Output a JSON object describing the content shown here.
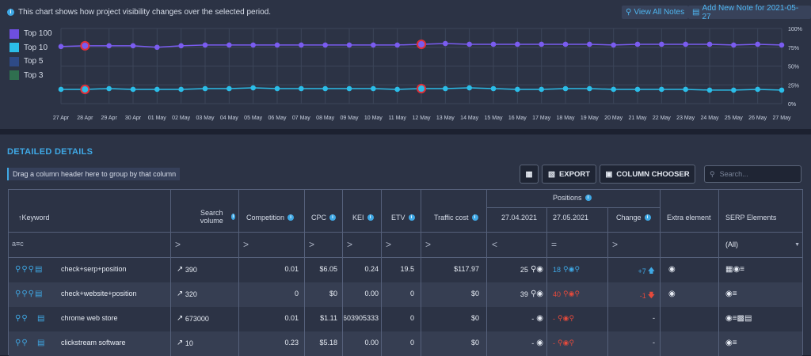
{
  "header": {
    "info_text": "This chart shows how project visibility changes over the selected period.",
    "view_all_notes": "View All Notes",
    "add_note": "Add New Note for 2021-05-27"
  },
  "legend": [
    {
      "label": "Top 100",
      "color": "#6e4fe0"
    },
    {
      "label": "Top 10",
      "color": "#2bbde8"
    },
    {
      "label": "Top 5",
      "color": "#2e4a86"
    },
    {
      "label": "Top 3",
      "color": "#2f6f4f"
    }
  ],
  "chart_data": {
    "type": "line",
    "x": [
      "27 Apr",
      "28 Apr",
      "29 Apr",
      "30 Apr",
      "01 May",
      "02 May",
      "03 May",
      "04 May",
      "05 May",
      "06 May",
      "07 May",
      "08 May",
      "09 May",
      "10 May",
      "11 May",
      "12 May",
      "13 May",
      "14 May",
      "15 May",
      "16 May",
      "17 May",
      "18 May",
      "19 May",
      "20 May",
      "21 May",
      "22 May",
      "23 May",
      "24 May",
      "25 May",
      "26 May",
      "27 May"
    ],
    "ylim": [
      0,
      100
    ],
    "yticks": [
      "100%",
      "75%",
      "50%",
      "25%",
      "0%"
    ],
    "grid": true,
    "legend_position": "left",
    "series": [
      {
        "name": "Top 100",
        "color": "#7a5cf0",
        "values": [
          76,
          77,
          77,
          77,
          75,
          77,
          78,
          78,
          78,
          78,
          78,
          78,
          78,
          78,
          78,
          79,
          80,
          79,
          79,
          79,
          79,
          79,
          79,
          78,
          79,
          79,
          79,
          79,
          78,
          79,
          78
        ]
      },
      {
        "name": "Top 10",
        "color": "#2bbde8",
        "values": [
          19,
          19,
          20,
          19,
          19,
          19,
          20,
          20,
          21,
          20,
          20,
          20,
          20,
          20,
          19,
          20,
          20,
          21,
          20,
          19,
          19,
          20,
          20,
          19,
          19,
          19,
          19,
          18,
          18,
          19,
          18
        ]
      }
    ],
    "highlighted_points": [
      1,
      15
    ]
  },
  "section_title": "DETAILED DETAILS",
  "group_hint": "Drag a column header here to group by that column",
  "toolbar": {
    "export": "EXPORT",
    "column_chooser": "COLUMN CHOOSER",
    "search_placeholder": "Search..."
  },
  "columns": {
    "keyword": "Keyword",
    "search_volume": "Search volume",
    "competition": "Competition",
    "cpc": "CPC",
    "kei": "KEI",
    "etv": "ETV",
    "traffic_cost": "Traffic cost",
    "positions": "Positions",
    "date1": "27.04.2021",
    "date2": "27.05.2021",
    "change": "Change",
    "extra": "Extra element",
    "serp": "SERP Elements"
  },
  "filters": {
    "gt": ">",
    "lt": "<",
    "eq": "=",
    "serp_all": "(All)"
  },
  "rows": [
    {
      "keyword": "check+serp+position",
      "volume": "390",
      "competition": "0.01",
      "cpc": "$6.05",
      "kei": "0.24",
      "etv": "19.5",
      "traffic_cost": "$117.97",
      "pos1": "25",
      "pos2": "18",
      "change": "+7",
      "change_dir": "up"
    },
    {
      "keyword": "check+website+position",
      "volume": "320",
      "competition": "0",
      "cpc": "$0",
      "kei": "0.00",
      "etv": "0",
      "traffic_cost": "$0",
      "pos1": "39",
      "pos2": "40",
      "change": "-1",
      "change_dir": "down"
    },
    {
      "keyword": "chrome web store",
      "volume": "673000",
      "competition": "0.01",
      "cpc": "$1.11",
      "kei": "603905333",
      "etv": "0",
      "traffic_cost": "$0",
      "pos1": "-",
      "pos2": "-",
      "change": "-",
      "change_dir": "none"
    },
    {
      "keyword": "clickstream software",
      "volume": "10",
      "competition": "0.23",
      "cpc": "$5.18",
      "kei": "0.00",
      "etv": "0",
      "traffic_cost": "$0",
      "pos1": "-",
      "pos2": "-",
      "change": "-",
      "change_dir": "none"
    }
  ]
}
